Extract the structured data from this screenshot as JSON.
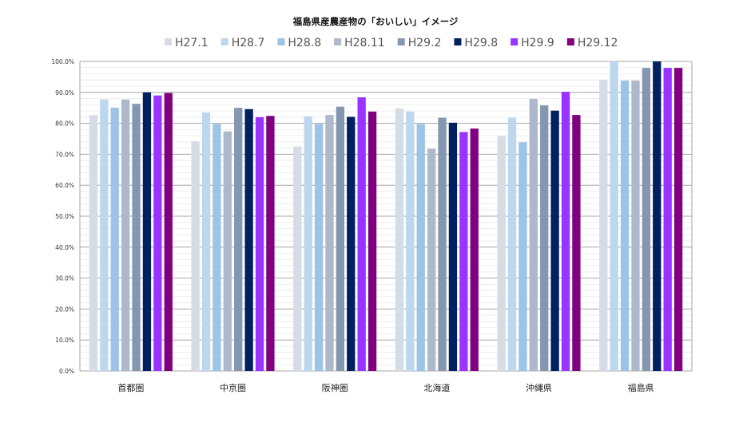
{
  "chart_data": {
    "type": "bar",
    "title": "福島県産農産物の「おいしい」イメージ",
    "xlabel": "",
    "ylabel": "",
    "ylim": [
      0,
      100
    ],
    "yticks": [
      "0.0%",
      "10.0%",
      "20.0%",
      "30.0%",
      "40.0%",
      "50.0%",
      "60.0%",
      "70.0%",
      "80.0%",
      "90.0%",
      "100.0%"
    ],
    "legend_position": "top",
    "grid": true,
    "categories": [
      "首都圏",
      "中京圏",
      "阪神圏",
      "北海道",
      "沖縄県",
      "福島県"
    ],
    "series": [
      {
        "name": "H27.1",
        "color": "#D6DCE5",
        "values": [
          82.7,
          74.2,
          72.5,
          84.8,
          75.9,
          94.1
        ]
      },
      {
        "name": "H28.7",
        "color": "#BDD7EE",
        "values": [
          87.7,
          83.5,
          82.3,
          83.8,
          81.8,
          100.0
        ]
      },
      {
        "name": "H28.8",
        "color": "#9DC3E6",
        "values": [
          85.1,
          79.8,
          79.8,
          79.8,
          73.9,
          93.8
        ]
      },
      {
        "name": "H28.11",
        "color": "#ADB9CA",
        "values": [
          87.7,
          77.4,
          82.7,
          71.8,
          87.9,
          93.8
        ]
      },
      {
        "name": "H29.2",
        "color": "#8497B0",
        "values": [
          86.3,
          85.0,
          85.4,
          81.8,
          85.8,
          97.9
        ]
      },
      {
        "name": "H29.8",
        "color": "#002060",
        "values": [
          90.0,
          84.6,
          82.1,
          80.2,
          84.1,
          100.0
        ]
      },
      {
        "name": "H29.9",
        "color": "#9933FF",
        "values": [
          89.0,
          82.0,
          88.4,
          77.2,
          90.2,
          97.9
        ]
      },
      {
        "name": "H29.12",
        "color": "#800080",
        "values": [
          89.8,
          82.4,
          83.8,
          78.3,
          82.7,
          97.9
        ]
      }
    ]
  }
}
